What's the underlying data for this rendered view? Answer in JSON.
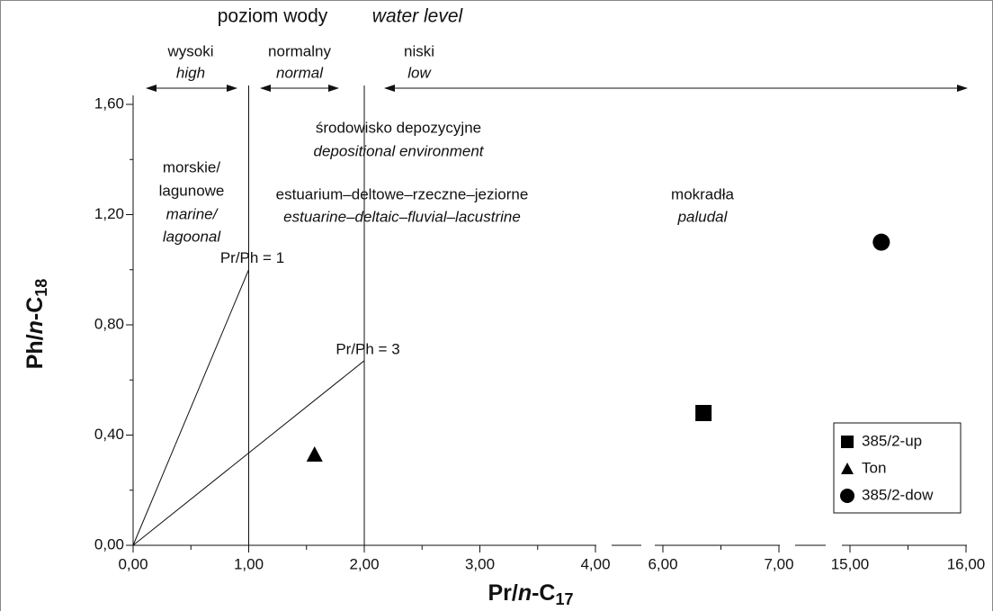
{
  "chart_data": {
    "type": "scatter",
    "xlabel_parts": [
      "Pr/",
      "n",
      "-C",
      "17"
    ],
    "ylabel_parts": [
      "Ph/",
      "n",
      "-C",
      "18"
    ],
    "ylim": [
      0,
      1.6
    ],
    "yticks": [
      {
        "value": 0,
        "label": "0,00"
      },
      {
        "value": 0.4,
        "label": "0,40"
      },
      {
        "value": 0.8,
        "label": "0,80"
      },
      {
        "value": 1.2,
        "label": "1,20"
      },
      {
        "value": 1.6,
        "label": "1,60"
      }
    ],
    "x_segments": [
      {
        "xlim": [
          0,
          4
        ],
        "xticks": [
          {
            "value": 0,
            "label": "0,00"
          },
          {
            "value": 1,
            "label": "1,00"
          },
          {
            "value": 2,
            "label": "2,00"
          },
          {
            "value": 3,
            "label": "3,00"
          },
          {
            "value": 4,
            "label": "4,00"
          }
        ]
      },
      {
        "xlim": [
          6,
          7
        ],
        "xticks": [
          {
            "value": 6,
            "label": "6,00"
          },
          {
            "value": 7,
            "label": "7,00"
          }
        ]
      },
      {
        "xlim": [
          15,
          16
        ],
        "xticks": [
          {
            "value": 15,
            "label": "15,00"
          },
          {
            "value": 16,
            "label": "16,00"
          }
        ]
      }
    ],
    "series": [
      {
        "name": "385/2-up",
        "marker": "square",
        "color": "#000000",
        "x": [
          6.35
        ],
        "values": [
          0.48
        ]
      },
      {
        "name": "Ton",
        "marker": "triangle",
        "color": "#000000",
        "x": [
          1.57
        ],
        "values": [
          0.33
        ]
      },
      {
        "name": "385/2-dow",
        "marker": "circle",
        "color": "#000000",
        "x": [
          15.27
        ],
        "values": [
          1.1
        ]
      }
    ],
    "ratio_lines": [
      {
        "label": "Pr/Ph = 1",
        "x": [
          0,
          1
        ],
        "values": [
          0,
          1
        ]
      },
      {
        "label": "Pr/Ph = 3",
        "x": [
          0,
          2
        ],
        "values": [
          0,
          0.67
        ]
      }
    ],
    "boundaries": [
      1,
      2
    ],
    "legend": "lower right",
    "header": {
      "pl": "poziom wody",
      "en": "water level"
    },
    "water_levels": [
      {
        "pl": "wysoki",
        "en": "high"
      },
      {
        "pl": "normalny",
        "en": "normal"
      },
      {
        "pl": "niski",
        "en": "low"
      }
    ],
    "environment_title": {
      "pl": "środowisko depozycyjne",
      "en": "depositional environment"
    },
    "environments": [
      {
        "pl": [
          "morskie/",
          "lagunowe"
        ],
        "en": [
          "marine/",
          "lagoonal"
        ]
      },
      {
        "pl": [
          "estuarium–deltowe–rzeczne–jeziorne"
        ],
        "en": [
          "estuarine–deltaic–fluvial–lacustrine"
        ]
      },
      {
        "pl": [
          "mokradła"
        ],
        "en": [
          "paludal"
        ]
      }
    ]
  }
}
